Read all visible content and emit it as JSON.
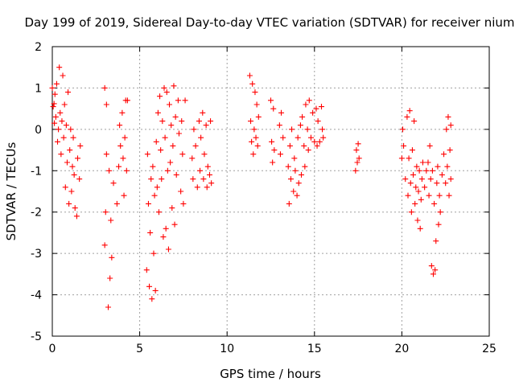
{
  "chart_data": {
    "type": "scatter",
    "title": "Day 199 of 2019, Sidereal Day-to-day VTEC variation (SDTVAR) for receiver nium",
    "xlabel": "GPS time / hours",
    "ylabel": "SDTVAR / TECUs",
    "xlim": [
      0,
      25
    ],
    "ylim": [
      -5,
      2
    ],
    "x_ticks": [
      0,
      5,
      10,
      15,
      20,
      25
    ],
    "y_ticks": [
      -5,
      -4,
      -3,
      -2,
      -1,
      0,
      1,
      2
    ],
    "x_tick_labels": [
      "0",
      "5",
      "10",
      "15",
      "20",
      "25"
    ],
    "y_tick_labels": [
      "-5",
      "-4",
      "-3",
      "-2",
      "-1",
      "0",
      "1",
      "2"
    ],
    "grid": true,
    "marker": "+",
    "color": "#ff0000",
    "series": [
      {
        "name": "SDTVAR",
        "points": [
          [
            0.0,
            1.0
          ],
          [
            0.05,
            0.55
          ],
          [
            0.1,
            0.62
          ],
          [
            0.12,
            0.15
          ],
          [
            0.15,
            0.85
          ],
          [
            0.2,
            0.3
          ],
          [
            0.25,
            1.1
          ],
          [
            0.3,
            -0.3
          ],
          [
            0.35,
            0.0
          ],
          [
            0.4,
            1.5
          ],
          [
            0.45,
            0.4
          ],
          [
            0.5,
            -0.6
          ],
          [
            0.55,
            0.2
          ],
          [
            0.6,
            1.3
          ],
          [
            0.65,
            -0.2
          ],
          [
            0.7,
            0.6
          ],
          [
            0.75,
            -1.4
          ],
          [
            0.8,
            0.1
          ],
          [
            0.85,
            -0.8
          ],
          [
            0.9,
            0.9
          ],
          [
            0.95,
            -1.8
          ],
          [
            1.0,
            -0.5
          ],
          [
            1.05,
            0.0
          ],
          [
            1.1,
            -1.5
          ],
          [
            1.15,
            -0.9
          ],
          [
            1.2,
            -0.2
          ],
          [
            1.25,
            -1.1
          ],
          [
            1.3,
            -1.9
          ],
          [
            1.4,
            -2.1
          ],
          [
            1.45,
            -0.7
          ],
          [
            1.55,
            -1.2
          ],
          [
            1.6,
            -0.4
          ],
          [
            3.0,
            -2.8
          ],
          [
            3.0,
            1.0
          ],
          [
            3.05,
            -2.0
          ],
          [
            3.1,
            0.6
          ],
          [
            3.1,
            -0.6
          ],
          [
            3.2,
            -4.3
          ],
          [
            3.3,
            -3.6
          ],
          [
            3.4,
            -3.1
          ],
          [
            3.35,
            -2.2
          ],
          [
            3.25,
            -1.0
          ],
          [
            3.5,
            -1.3
          ],
          [
            3.7,
            -1.8
          ],
          [
            3.8,
            -0.9
          ],
          [
            3.85,
            0.1
          ],
          [
            3.9,
            -0.4
          ],
          [
            4.0,
            0.4
          ],
          [
            4.05,
            -0.7
          ],
          [
            4.1,
            -1.6
          ],
          [
            4.15,
            -0.2
          ],
          [
            4.2,
            0.7
          ],
          [
            4.25,
            -1.0
          ],
          [
            4.3,
            0.7
          ],
          [
            5.4,
            -3.4
          ],
          [
            5.45,
            -0.6
          ],
          [
            5.5,
            -1.8
          ],
          [
            5.55,
            -3.8
          ],
          [
            5.6,
            -2.5
          ],
          [
            5.65,
            -1.2
          ],
          [
            5.7,
            -4.1
          ],
          [
            5.75,
            -0.9
          ],
          [
            5.8,
            -3.0
          ],
          [
            5.85,
            -1.6
          ],
          [
            5.9,
            -3.9
          ],
          [
            5.95,
            -0.3
          ],
          [
            6.0,
            -1.4
          ],
          [
            6.05,
            0.4
          ],
          [
            6.1,
            -2.0
          ],
          [
            6.15,
            0.8
          ],
          [
            6.2,
            -0.5
          ],
          [
            6.25,
            -1.2
          ],
          [
            6.3,
            0.2
          ],
          [
            6.35,
            -2.6
          ],
          [
            6.4,
            1.0
          ],
          [
            6.45,
            -0.2
          ],
          [
            6.5,
            -2.4
          ],
          [
            6.55,
            0.9
          ],
          [
            6.6,
            -1.0
          ],
          [
            6.65,
            -2.9
          ],
          [
            6.7,
            0.6
          ],
          [
            6.75,
            -0.8
          ],
          [
            6.8,
            0.1
          ],
          [
            6.85,
            -1.9
          ],
          [
            6.9,
            -0.4
          ],
          [
            6.95,
            1.05
          ],
          [
            7.0,
            -2.3
          ],
          [
            7.05,
            0.3
          ],
          [
            7.1,
            -1.1
          ],
          [
            7.2,
            0.7
          ],
          [
            7.25,
            -0.1
          ],
          [
            7.35,
            -1.5
          ],
          [
            7.4,
            0.2
          ],
          [
            7.45,
            -0.6
          ],
          [
            7.5,
            -1.8
          ],
          [
            7.6,
            0.7
          ],
          [
            8.0,
            -0.7
          ],
          [
            8.05,
            -1.2
          ],
          [
            8.1,
            0.0
          ],
          [
            8.2,
            -0.4
          ],
          [
            8.3,
            -1.4
          ],
          [
            8.4,
            0.2
          ],
          [
            8.45,
            -1.0
          ],
          [
            8.5,
            -0.2
          ],
          [
            8.6,
            0.4
          ],
          [
            8.65,
            -1.2
          ],
          [
            8.7,
            -0.6
          ],
          [
            8.8,
            0.1
          ],
          [
            8.85,
            -1.4
          ],
          [
            8.9,
            -0.9
          ],
          [
            9.0,
            -1.1
          ],
          [
            9.05,
            0.2
          ],
          [
            9.1,
            -1.3
          ],
          [
            11.3,
            1.3
          ],
          [
            11.35,
            0.2
          ],
          [
            11.4,
            -0.3
          ],
          [
            11.45,
            1.1
          ],
          [
            11.5,
            -0.6
          ],
          [
            11.55,
            0.0
          ],
          [
            11.6,
            0.9
          ],
          [
            11.65,
            -0.2
          ],
          [
            11.7,
            0.6
          ],
          [
            11.75,
            -0.4
          ],
          [
            11.8,
            0.3
          ],
          [
            12.5,
            0.7
          ],
          [
            12.55,
            -0.3
          ],
          [
            12.6,
            -0.8
          ],
          [
            12.65,
            0.5
          ],
          [
            12.7,
            -0.5
          ],
          [
            13.0,
            0.1
          ],
          [
            13.05,
            -0.6
          ],
          [
            13.1,
            0.4
          ],
          [
            13.2,
            -0.2
          ],
          [
            13.5,
            -0.9
          ],
          [
            13.55,
            -1.8
          ],
          [
            13.6,
            -0.4
          ],
          [
            13.65,
            -1.2
          ],
          [
            13.7,
            0.0
          ],
          [
            13.8,
            -1.5
          ],
          [
            13.85,
            -0.7
          ],
          [
            13.9,
            -1.0
          ],
          [
            14.0,
            -1.6
          ],
          [
            14.05,
            -0.2
          ],
          [
            14.1,
            -1.3
          ],
          [
            14.2,
            0.1
          ],
          [
            14.25,
            -1.1
          ],
          [
            14.3,
            0.3
          ],
          [
            14.4,
            -0.4
          ],
          [
            14.45,
            -0.9
          ],
          [
            14.5,
            0.6
          ],
          [
            14.6,
            0.0
          ],
          [
            14.65,
            -0.5
          ],
          [
            14.7,
            0.7
          ],
          [
            14.8,
            -0.2
          ],
          [
            14.9,
            0.4
          ],
          [
            15.0,
            -0.3
          ],
          [
            15.1,
            0.5
          ],
          [
            15.15,
            -0.4
          ],
          [
            15.2,
            0.2
          ],
          [
            15.3,
            -0.3
          ],
          [
            15.4,
            0.55
          ],
          [
            15.45,
            0.0
          ],
          [
            15.5,
            -0.2
          ],
          [
            17.35,
            -1.0
          ],
          [
            17.4,
            -0.5
          ],
          [
            17.45,
            -0.8
          ],
          [
            17.5,
            -0.35
          ],
          [
            17.55,
            -0.7
          ],
          [
            20.0,
            -0.7
          ],
          [
            20.05,
            0.0
          ],
          [
            20.1,
            -0.4
          ],
          [
            20.2,
            -1.2
          ],
          [
            20.3,
            0.3
          ],
          [
            20.35,
            -1.6
          ],
          [
            20.4,
            -0.7
          ],
          [
            20.45,
            0.45
          ],
          [
            20.5,
            -1.3
          ],
          [
            20.55,
            -2.0
          ],
          [
            20.6,
            -0.5
          ],
          [
            20.65,
            -1.1
          ],
          [
            20.7,
            0.2
          ],
          [
            20.75,
            -1.8
          ],
          [
            20.8,
            -1.4
          ],
          [
            20.85,
            -0.9
          ],
          [
            20.9,
            -2.2
          ],
          [
            20.95,
            -1.5
          ],
          [
            21.0,
            -1.0
          ],
          [
            21.05,
            -2.4
          ],
          [
            21.1,
            -1.7
          ],
          [
            21.15,
            -1.2
          ],
          [
            21.2,
            -0.8
          ],
          [
            21.3,
            -1.4
          ],
          [
            21.4,
            -1.0
          ],
          [
            21.5,
            -0.8
          ],
          [
            21.55,
            -1.6
          ],
          [
            21.6,
            -0.4
          ],
          [
            21.65,
            -1.2
          ],
          [
            21.7,
            -3.3
          ],
          [
            21.75,
            -1.0
          ],
          [
            21.8,
            -3.5
          ],
          [
            21.85,
            -1.8
          ],
          [
            21.9,
            -3.4
          ],
          [
            21.95,
            -2.7
          ],
          [
            22.0,
            -1.3
          ],
          [
            22.05,
            -0.9
          ],
          [
            22.1,
            -2.3
          ],
          [
            22.15,
            -1.6
          ],
          [
            22.2,
            -2.0
          ],
          [
            22.3,
            -1.1
          ],
          [
            22.4,
            -0.6
          ],
          [
            22.5,
            -1.3
          ],
          [
            22.55,
            0.0
          ],
          [
            22.6,
            -0.9
          ],
          [
            22.65,
            0.3
          ],
          [
            22.7,
            -1.6
          ],
          [
            22.75,
            -0.5
          ],
          [
            22.8,
            -1.2
          ],
          [
            22.8,
            0.1
          ]
        ]
      }
    ]
  }
}
